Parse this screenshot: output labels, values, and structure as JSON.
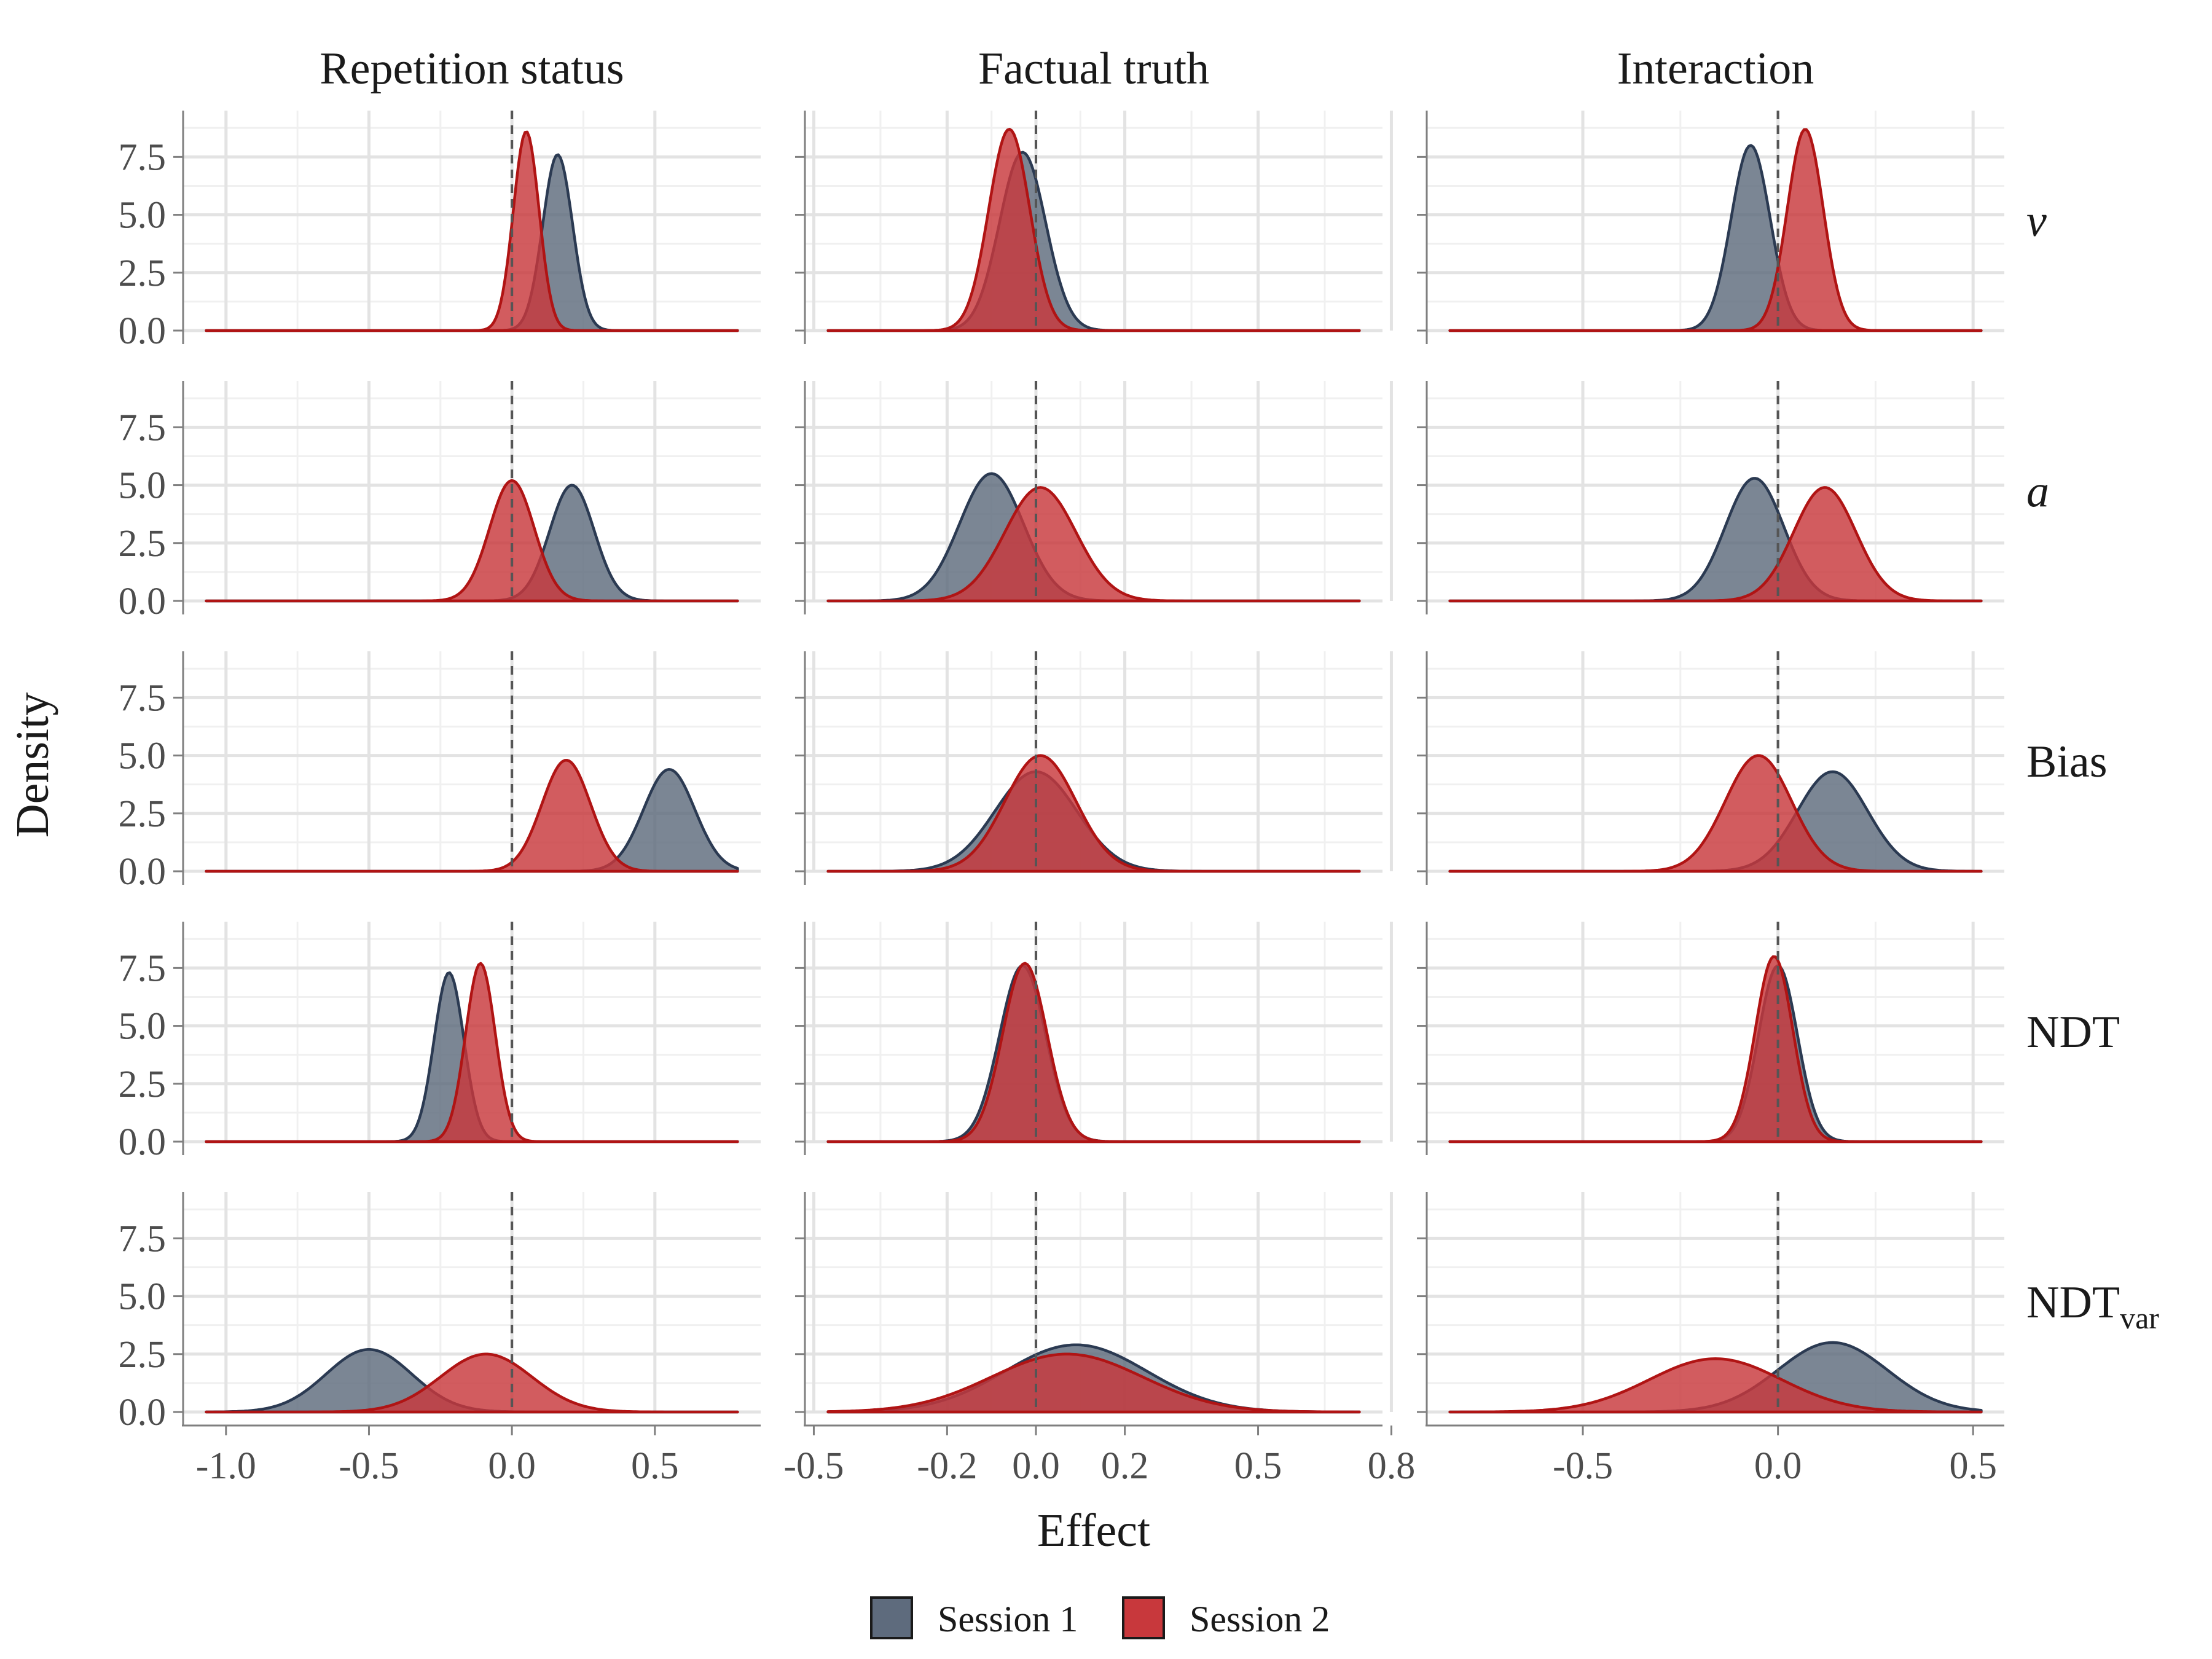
{
  "chart_data": {
    "type": "area",
    "xlabel": "Effect",
    "ylabel": "Density",
    "columns": [
      {
        "title": "Repetition status",
        "xlim": [
          -1.15,
          0.87
        ],
        "xticks": [
          -1.0,
          -0.5,
          0.0,
          0.5
        ],
        "xtick_labels": [
          "-1.0",
          "-0.5",
          "0.0",
          "0.5"
        ]
      },
      {
        "title": "Factual truth",
        "xlim": [
          -0.52,
          0.78
        ],
        "xticks": [
          -0.5,
          -0.2,
          0.0,
          0.2,
          0.5,
          0.8
        ],
        "xtick_labels": [
          "-0.5",
          "-0.2",
          "0.0",
          "0.2",
          "0.5",
          "0.8"
        ]
      },
      {
        "title": "Interaction",
        "xlim": [
          -0.9,
          0.58
        ],
        "xticks": [
          -0.5,
          0.0,
          0.5
        ],
        "xtick_labels": [
          "-0.5",
          "0.0",
          "0.5"
        ]
      }
    ],
    "rows": [
      {
        "label": "v",
        "italic": true
      },
      {
        "label": "a",
        "italic": true
      },
      {
        "label": "Bias",
        "italic": false
      },
      {
        "label": "NDT",
        "italic": false
      },
      {
        "label": "NDT",
        "subscript": "var",
        "italic": false
      }
    ],
    "ylim": [
      0,
      9.5
    ],
    "yticks": [
      0.0,
      2.5,
      5.0,
      7.5
    ],
    "ytick_labels": [
      "0.0",
      "2.5",
      "5.0",
      "7.5"
    ],
    "series": [
      {
        "name": "Session 1",
        "color": "#2b3a52",
        "fill": "#5e6b7d"
      },
      {
        "name": "Session 2",
        "color": "#b01414",
        "fill": "#c8383c"
      }
    ],
    "reference_line_x": 0,
    "panels": [
      {
        "row": 0,
        "col": 0,
        "session1": {
          "mean": 0.16,
          "sd": 0.052,
          "peak": 7.6
        },
        "session2": {
          "mean": 0.05,
          "sd": 0.045,
          "peak": 8.6
        }
      },
      {
        "row": 0,
        "col": 1,
        "session1": {
          "mean": -0.03,
          "sd": 0.052,
          "peak": 7.7
        },
        "session2": {
          "mean": -0.06,
          "sd": 0.046,
          "peak": 8.7
        }
      },
      {
        "row": 0,
        "col": 2,
        "session1": {
          "mean": -0.07,
          "sd": 0.05,
          "peak": 8.0
        },
        "session2": {
          "mean": 0.07,
          "sd": 0.046,
          "peak": 8.7
        }
      },
      {
        "row": 1,
        "col": 0,
        "session1": {
          "mean": 0.21,
          "sd": 0.078,
          "peak": 5.0
        },
        "session2": {
          "mean": 0.0,
          "sd": 0.078,
          "peak": 5.2
        }
      },
      {
        "row": 1,
        "col": 1,
        "session1": {
          "mean": -0.1,
          "sd": 0.072,
          "peak": 5.5
        },
        "session2": {
          "mean": 0.01,
          "sd": 0.08,
          "peak": 4.9
        }
      },
      {
        "row": 1,
        "col": 2,
        "session1": {
          "mean": -0.06,
          "sd": 0.075,
          "peak": 5.3
        },
        "session2": {
          "mean": 0.12,
          "sd": 0.08,
          "peak": 4.9
        }
      },
      {
        "row": 2,
        "col": 0,
        "session1": {
          "mean": 0.55,
          "sd": 0.09,
          "peak": 4.4
        },
        "session2": {
          "mean": 0.19,
          "sd": 0.085,
          "peak": 4.8
        }
      },
      {
        "row": 2,
        "col": 1,
        "session1": {
          "mean": 0.0,
          "sd": 0.092,
          "peak": 4.3
        },
        "session2": {
          "mean": 0.01,
          "sd": 0.08,
          "peak": 5.0
        }
      },
      {
        "row": 2,
        "col": 2,
        "session1": {
          "mean": 0.14,
          "sd": 0.09,
          "peak": 4.3
        },
        "session2": {
          "mean": -0.05,
          "sd": 0.085,
          "peak": 5.0
        }
      },
      {
        "row": 3,
        "col": 0,
        "session1": {
          "mean": -0.22,
          "sd": 0.052,
          "peak": 7.3
        },
        "session2": {
          "mean": -0.11,
          "sd": 0.052,
          "peak": 7.7
        }
      },
      {
        "row": 3,
        "col": 1,
        "session1": {
          "mean": -0.03,
          "sd": 0.052,
          "peak": 7.6
        },
        "session2": {
          "mean": -0.025,
          "sd": 0.05,
          "peak": 7.7
        }
      },
      {
        "row": 3,
        "col": 2,
        "session1": {
          "mean": 0.0,
          "sd": 0.05,
          "peak": 7.6
        },
        "session2": {
          "mean": -0.01,
          "sd": 0.048,
          "peak": 8.0
        }
      },
      {
        "row": 4,
        "col": 0,
        "session1": {
          "mean": -0.5,
          "sd": 0.15,
          "peak": 2.7
        },
        "session2": {
          "mean": -0.09,
          "sd": 0.16,
          "peak": 2.5
        }
      },
      {
        "row": 4,
        "col": 1,
        "session1": {
          "mean": 0.09,
          "sd": 0.16,
          "peak": 2.9
        },
        "session2": {
          "mean": 0.07,
          "sd": 0.17,
          "peak": 2.5
        }
      },
      {
        "row": 4,
        "col": 2,
        "session1": {
          "mean": 0.14,
          "sd": 0.14,
          "peak": 3.0
        },
        "session2": {
          "mean": -0.16,
          "sd": 0.17,
          "peak": 2.3
        }
      }
    ]
  }
}
